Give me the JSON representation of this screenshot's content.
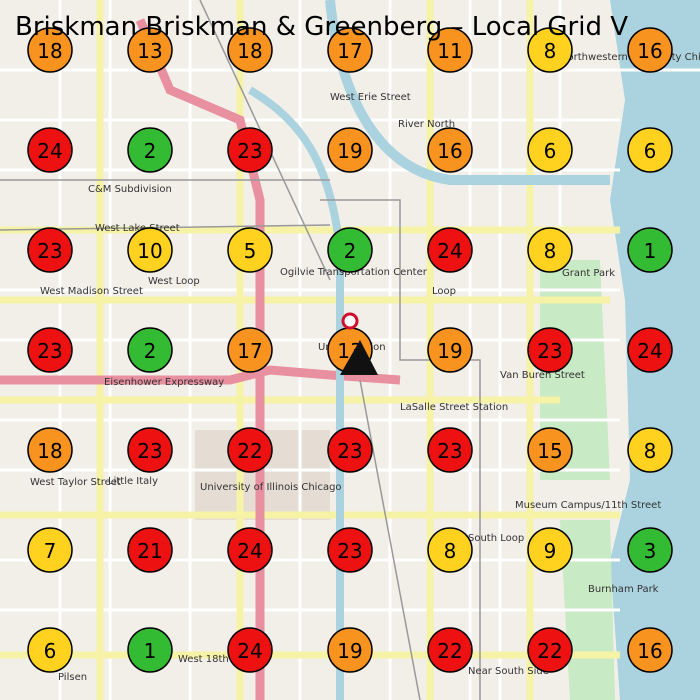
{
  "title": "Briskman Briskman & Greenberg – Local Grid V",
  "grid": [
    [
      {
        "rank": 18,
        "color": "#f7931e"
      },
      {
        "rank": 13,
        "color": "#f7931e"
      },
      {
        "rank": 18,
        "color": "#f7931e"
      },
      {
        "rank": 17,
        "color": "#f7931e"
      },
      {
        "rank": 11,
        "color": "#f7931e"
      },
      {
        "rank": 8,
        "color": "#ffd21f"
      },
      {
        "rank": 16,
        "color": "#f7931e"
      }
    ],
    [
      {
        "rank": 24,
        "color": "#ee1111"
      },
      {
        "rank": 2,
        "color": "#33bb33"
      },
      {
        "rank": 23,
        "color": "#ee1111"
      },
      {
        "rank": 19,
        "color": "#f7931e"
      },
      {
        "rank": 16,
        "color": "#f7931e"
      },
      {
        "rank": 6,
        "color": "#ffd21f"
      },
      {
        "rank": 6,
        "color": "#ffd21f"
      }
    ],
    [
      {
        "rank": 23,
        "color": "#ee1111"
      },
      {
        "rank": 10,
        "color": "#ffd21f"
      },
      {
        "rank": 5,
        "color": "#ffd21f"
      },
      {
        "rank": 2,
        "color": "#33bb33"
      },
      {
        "rank": 24,
        "color": "#ee1111"
      },
      {
        "rank": 8,
        "color": "#ffd21f"
      },
      {
        "rank": 1,
        "color": "#33bb33"
      }
    ],
    [
      {
        "rank": 23,
        "color": "#ee1111"
      },
      {
        "rank": 2,
        "color": "#33bb33"
      },
      {
        "rank": 17,
        "color": "#f7931e"
      },
      {
        "rank": 13,
        "color": "#f7931e"
      },
      {
        "rank": 19,
        "color": "#f7931e"
      },
      {
        "rank": 23,
        "color": "#ee1111"
      },
      {
        "rank": 24,
        "color": "#ee1111"
      }
    ],
    [
      {
        "rank": 18,
        "color": "#f7931e"
      },
      {
        "rank": 23,
        "color": "#ee1111"
      },
      {
        "rank": 22,
        "color": "#ee1111"
      },
      {
        "rank": 23,
        "color": "#ee1111"
      },
      {
        "rank": 23,
        "color": "#ee1111"
      },
      {
        "rank": 15,
        "color": "#f7931e"
      },
      {
        "rank": 8,
        "color": "#ffd21f"
      }
    ],
    [
      {
        "rank": 7,
        "color": "#ffd21f"
      },
      {
        "rank": 21,
        "color": "#ee1111"
      },
      {
        "rank": 24,
        "color": "#ee1111"
      },
      {
        "rank": 23,
        "color": "#ee1111"
      },
      {
        "rank": 8,
        "color": "#ffd21f"
      },
      {
        "rank": 9,
        "color": "#ffd21f"
      },
      {
        "rank": 3,
        "color": "#33bb33"
      }
    ],
    [
      {
        "rank": 6,
        "color": "#ffd21f"
      },
      {
        "rank": 1,
        "color": "#33bb33"
      },
      {
        "rank": 24,
        "color": "#ee1111"
      },
      {
        "rank": 19,
        "color": "#f7931e"
      },
      {
        "rank": 22,
        "color": "#ee1111"
      },
      {
        "rank": 22,
        "color": "#ee1111"
      },
      {
        "rank": 16,
        "color": "#f7931e"
      }
    ]
  ],
  "map_labels": [
    "West Erie Street",
    "River North",
    "C&M Subdivision",
    "West Lake Street",
    "West Loop",
    "West Madison Street",
    "Ogilvie Transportation Center",
    "Loop",
    "Grant Park",
    "Eisenhower Expressway",
    "Union Station",
    "Van Buren Street",
    "LaSalle Street Station",
    "West Taylor Street",
    "Little Italy",
    "University of Illinois Chicago",
    "Museum Campus/11th Street",
    "South Loop",
    "Burnham Park",
    "Pilsen",
    "West 18th Street",
    "Near South Side",
    "Northwestern University Chicago Campus"
  ]
}
